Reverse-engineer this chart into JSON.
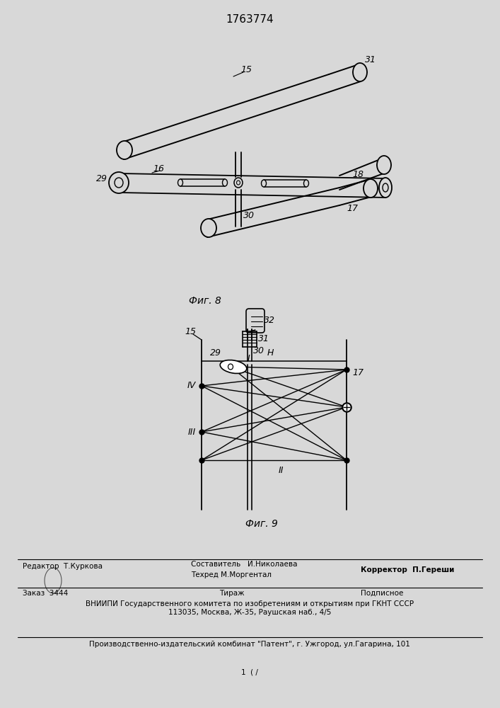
{
  "title": "1763774",
  "fig8_label": "Фиг. 8",
  "fig9_label": "Фиг. 9",
  "bg_color": "#d8d8d8",
  "line_color": "#000000",
  "footer_editor": "Редактор  Т.Куркова",
  "footer_author": "Составитель   И.Николаева",
  "footer_tech": "Техред М.Моргентал",
  "footer_corrector": "Корректор  П.Гереши",
  "footer_order": "Заказ  3444",
  "footer_tirazh": "Тираж",
  "footer_podp": "Подписное",
  "footer_vniipи": "ВНИИПИ Государственного комитета по изобретениям и открытиям при ГКНТ СССР",
  "footer_addr": "113035, Москва, Ж-35, Раушская наб., 4/5",
  "footer_patent": "Производственно-издательский комбинат \"Патент\", г. Ужгород, ул.Гагарина, 101",
  "footer_page": "1  ( /"
}
